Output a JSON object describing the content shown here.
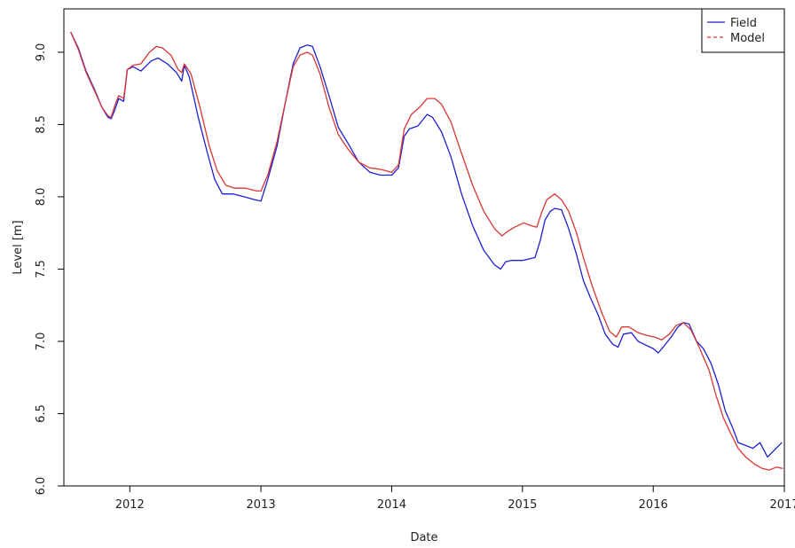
{
  "chart_data": {
    "type": "line",
    "xlabel": "Date",
    "ylabel": "Level [m]",
    "xlim": [
      "2011-07-01",
      "2017-01-01"
    ],
    "ylim": [
      6.0,
      9.3
    ],
    "x_ticks": [
      {
        "date": "2012-01-01",
        "label": "2012"
      },
      {
        "date": "2013-01-01",
        "label": "2013"
      },
      {
        "date": "2014-01-01",
        "label": "2014"
      },
      {
        "date": "2015-01-01",
        "label": "2015"
      },
      {
        "date": "2016-01-01",
        "label": "2016"
      },
      {
        "date": "2017-01-01",
        "label": "2017"
      }
    ],
    "y_ticks": [
      {
        "value": 6.0,
        "label": "6.0"
      },
      {
        "value": 6.5,
        "label": "6.5"
      },
      {
        "value": 7.0,
        "label": "7.0"
      },
      {
        "value": 7.5,
        "label": "7.5"
      },
      {
        "value": 8.0,
        "label": "8.0"
      },
      {
        "value": 8.5,
        "label": "8.5"
      },
      {
        "value": 9.0,
        "label": "9.0"
      }
    ],
    "grid": false,
    "legend_position": "top-right",
    "series": [
      {
        "name": "Field",
        "color": "#1f1fd4",
        "dash": "solid",
        "points": [
          [
            "2011-07-20",
            9.14
          ],
          [
            "2011-08-10",
            9.03
          ],
          [
            "2011-09-01",
            8.87
          ],
          [
            "2011-09-25",
            8.74
          ],
          [
            "2011-10-15",
            8.62
          ],
          [
            "2011-11-01",
            8.55
          ],
          [
            "2011-11-10",
            8.54
          ],
          [
            "2011-11-20",
            8.6
          ],
          [
            "2011-12-01",
            8.68
          ],
          [
            "2011-12-15",
            8.66
          ],
          [
            "2011-12-25",
            8.88
          ],
          [
            "2012-01-10",
            8.9
          ],
          [
            "2012-02-01",
            8.87
          ],
          [
            "2012-03-01",
            8.94
          ],
          [
            "2012-03-20",
            8.96
          ],
          [
            "2012-04-15",
            8.92
          ],
          [
            "2012-05-10",
            8.86
          ],
          [
            "2012-05-25",
            8.8
          ],
          [
            "2012-06-01",
            8.91
          ],
          [
            "2012-06-15",
            8.83
          ],
          [
            "2012-07-10",
            8.55
          ],
          [
            "2012-08-05",
            8.3
          ],
          [
            "2012-08-25",
            8.12
          ],
          [
            "2012-09-15",
            8.02
          ],
          [
            "2012-10-15",
            8.02
          ],
          [
            "2012-11-15",
            8.0
          ],
          [
            "2012-12-15",
            7.98
          ],
          [
            "2013-01-01",
            7.97
          ],
          [
            "2013-01-20",
            8.12
          ],
          [
            "2013-02-15",
            8.35
          ],
          [
            "2013-03-10",
            8.65
          ],
          [
            "2013-04-01",
            8.92
          ],
          [
            "2013-04-20",
            9.03
          ],
          [
            "2013-05-10",
            9.05
          ],
          [
            "2013-05-25",
            9.04
          ],
          [
            "2013-06-15",
            8.9
          ],
          [
            "2013-07-10",
            8.7
          ],
          [
            "2013-08-05",
            8.48
          ],
          [
            "2013-09-01",
            8.37
          ],
          [
            "2013-10-01",
            8.24
          ],
          [
            "2013-11-01",
            8.17
          ],
          [
            "2013-12-01",
            8.15
          ],
          [
            "2014-01-01",
            8.15
          ],
          [
            "2014-01-20",
            8.2
          ],
          [
            "2014-02-05",
            8.42
          ],
          [
            "2014-02-20",
            8.47
          ],
          [
            "2014-03-15",
            8.49
          ],
          [
            "2014-04-10",
            8.57
          ],
          [
            "2014-04-25",
            8.55
          ],
          [
            "2014-05-20",
            8.45
          ],
          [
            "2014-06-15",
            8.28
          ],
          [
            "2014-07-15",
            8.02
          ],
          [
            "2014-08-15",
            7.8
          ],
          [
            "2014-09-15",
            7.63
          ],
          [
            "2014-10-15",
            7.53
          ],
          [
            "2014-11-01",
            7.5
          ],
          [
            "2014-11-15",
            7.55
          ],
          [
            "2014-12-01",
            7.56
          ],
          [
            "2015-01-01",
            7.56
          ],
          [
            "2015-01-20",
            7.57
          ],
          [
            "2015-02-05",
            7.58
          ],
          [
            "2015-02-20",
            7.7
          ],
          [
            "2015-03-05",
            7.84
          ],
          [
            "2015-03-20",
            7.9
          ],
          [
            "2015-04-01",
            7.92
          ],
          [
            "2015-04-20",
            7.91
          ],
          [
            "2015-05-10",
            7.78
          ],
          [
            "2015-06-01",
            7.6
          ],
          [
            "2015-06-20",
            7.42
          ],
          [
            "2015-07-10",
            7.3
          ],
          [
            "2015-08-01",
            7.18
          ],
          [
            "2015-08-20",
            7.05
          ],
          [
            "2015-09-10",
            6.98
          ],
          [
            "2015-09-25",
            6.96
          ],
          [
            "2015-10-10",
            7.05
          ],
          [
            "2015-11-01",
            7.06
          ],
          [
            "2015-11-20",
            7.0
          ],
          [
            "2015-12-15",
            6.97
          ],
          [
            "2016-01-01",
            6.95
          ],
          [
            "2016-01-15",
            6.92
          ],
          [
            "2016-02-01",
            6.97
          ],
          [
            "2016-02-20",
            7.03
          ],
          [
            "2016-03-10",
            7.1
          ],
          [
            "2016-03-25",
            7.13
          ],
          [
            "2016-04-10",
            7.12
          ],
          [
            "2016-05-01",
            7.0
          ],
          [
            "2016-05-20",
            6.95
          ],
          [
            "2016-06-10",
            6.85
          ],
          [
            "2016-07-01",
            6.7
          ],
          [
            "2016-07-20",
            6.52
          ],
          [
            "2016-08-10",
            6.4
          ],
          [
            "2016-08-25",
            6.3
          ],
          [
            "2016-09-15",
            6.28
          ],
          [
            "2016-10-05",
            6.26
          ],
          [
            "2016-10-25",
            6.3
          ],
          [
            "2016-11-15",
            6.2
          ],
          [
            "2016-12-05",
            6.25
          ],
          [
            "2016-12-25",
            6.3
          ]
        ]
      },
      {
        "name": "Model",
        "color": "#d93535",
        "dash": "dashed",
        "points": [
          [
            "2011-07-20",
            9.14
          ],
          [
            "2011-08-10",
            9.02
          ],
          [
            "2011-09-01",
            8.86
          ],
          [
            "2011-09-25",
            8.73
          ],
          [
            "2011-10-15",
            8.62
          ],
          [
            "2011-11-01",
            8.56
          ],
          [
            "2011-11-10",
            8.55
          ],
          [
            "2011-11-20",
            8.63
          ],
          [
            "2011-12-01",
            8.7
          ],
          [
            "2011-12-15",
            8.68
          ],
          [
            "2011-12-25",
            8.88
          ],
          [
            "2012-01-10",
            8.91
          ],
          [
            "2012-02-01",
            8.92
          ],
          [
            "2012-02-25",
            9.0
          ],
          [
            "2012-03-15",
            9.04
          ],
          [
            "2012-04-01",
            9.03
          ],
          [
            "2012-04-25",
            8.98
          ],
          [
            "2012-05-15",
            8.88
          ],
          [
            "2012-05-25",
            8.86
          ],
          [
            "2012-06-01",
            8.92
          ],
          [
            "2012-06-20",
            8.85
          ],
          [
            "2012-07-15",
            8.62
          ],
          [
            "2012-08-10",
            8.35
          ],
          [
            "2012-09-01",
            8.18
          ],
          [
            "2012-09-25",
            8.08
          ],
          [
            "2012-10-20",
            8.06
          ],
          [
            "2012-11-20",
            8.06
          ],
          [
            "2012-12-20",
            8.04
          ],
          [
            "2013-01-01",
            8.04
          ],
          [
            "2013-01-20",
            8.15
          ],
          [
            "2013-02-15",
            8.38
          ],
          [
            "2013-03-10",
            8.65
          ],
          [
            "2013-04-01",
            8.9
          ],
          [
            "2013-04-20",
            8.98
          ],
          [
            "2013-05-10",
            9.0
          ],
          [
            "2013-05-25",
            8.98
          ],
          [
            "2013-06-15",
            8.85
          ],
          [
            "2013-07-10",
            8.62
          ],
          [
            "2013-08-05",
            8.43
          ],
          [
            "2013-09-01",
            8.33
          ],
          [
            "2013-10-01",
            8.24
          ],
          [
            "2013-11-01",
            8.2
          ],
          [
            "2013-12-01",
            8.19
          ],
          [
            "2014-01-01",
            8.17
          ],
          [
            "2014-01-20",
            8.22
          ],
          [
            "2014-02-05",
            8.47
          ],
          [
            "2014-02-25",
            8.57
          ],
          [
            "2014-03-20",
            8.62
          ],
          [
            "2014-04-10",
            8.68
          ],
          [
            "2014-05-01",
            8.68
          ],
          [
            "2014-05-20",
            8.64
          ],
          [
            "2014-06-15",
            8.52
          ],
          [
            "2014-07-15",
            8.3
          ],
          [
            "2014-08-15",
            8.08
          ],
          [
            "2014-09-15",
            7.9
          ],
          [
            "2014-10-15",
            7.78
          ],
          [
            "2014-11-05",
            7.73
          ],
          [
            "2014-11-20",
            7.76
          ],
          [
            "2014-12-10",
            7.79
          ],
          [
            "2015-01-05",
            7.82
          ],
          [
            "2015-01-25",
            7.8
          ],
          [
            "2015-02-10",
            7.79
          ],
          [
            "2015-02-25",
            7.9
          ],
          [
            "2015-03-10",
            7.98
          ],
          [
            "2015-04-01",
            8.02
          ],
          [
            "2015-04-20",
            7.98
          ],
          [
            "2015-05-10",
            7.9
          ],
          [
            "2015-06-01",
            7.75
          ],
          [
            "2015-06-20",
            7.58
          ],
          [
            "2015-07-15",
            7.38
          ],
          [
            "2015-08-10",
            7.2
          ],
          [
            "2015-09-01",
            7.07
          ],
          [
            "2015-09-20",
            7.03
          ],
          [
            "2015-10-05",
            7.1
          ],
          [
            "2015-10-25",
            7.1
          ],
          [
            "2015-11-20",
            7.06
          ],
          [
            "2015-12-15",
            7.04
          ],
          [
            "2016-01-05",
            7.03
          ],
          [
            "2016-01-25",
            7.01
          ],
          [
            "2016-02-15",
            7.05
          ],
          [
            "2016-03-05",
            7.11
          ],
          [
            "2016-03-25",
            7.13
          ],
          [
            "2016-04-15",
            7.08
          ],
          [
            "2016-05-10",
            6.95
          ],
          [
            "2016-06-05",
            6.8
          ],
          [
            "2016-06-25",
            6.62
          ],
          [
            "2016-07-15",
            6.47
          ],
          [
            "2016-08-05",
            6.36
          ],
          [
            "2016-08-25",
            6.26
          ],
          [
            "2016-09-15",
            6.2
          ],
          [
            "2016-10-10",
            6.15
          ],
          [
            "2016-11-01",
            6.12
          ],
          [
            "2016-11-20",
            6.11
          ],
          [
            "2016-12-10",
            6.13
          ],
          [
            "2016-12-28",
            6.12
          ]
        ]
      }
    ]
  }
}
